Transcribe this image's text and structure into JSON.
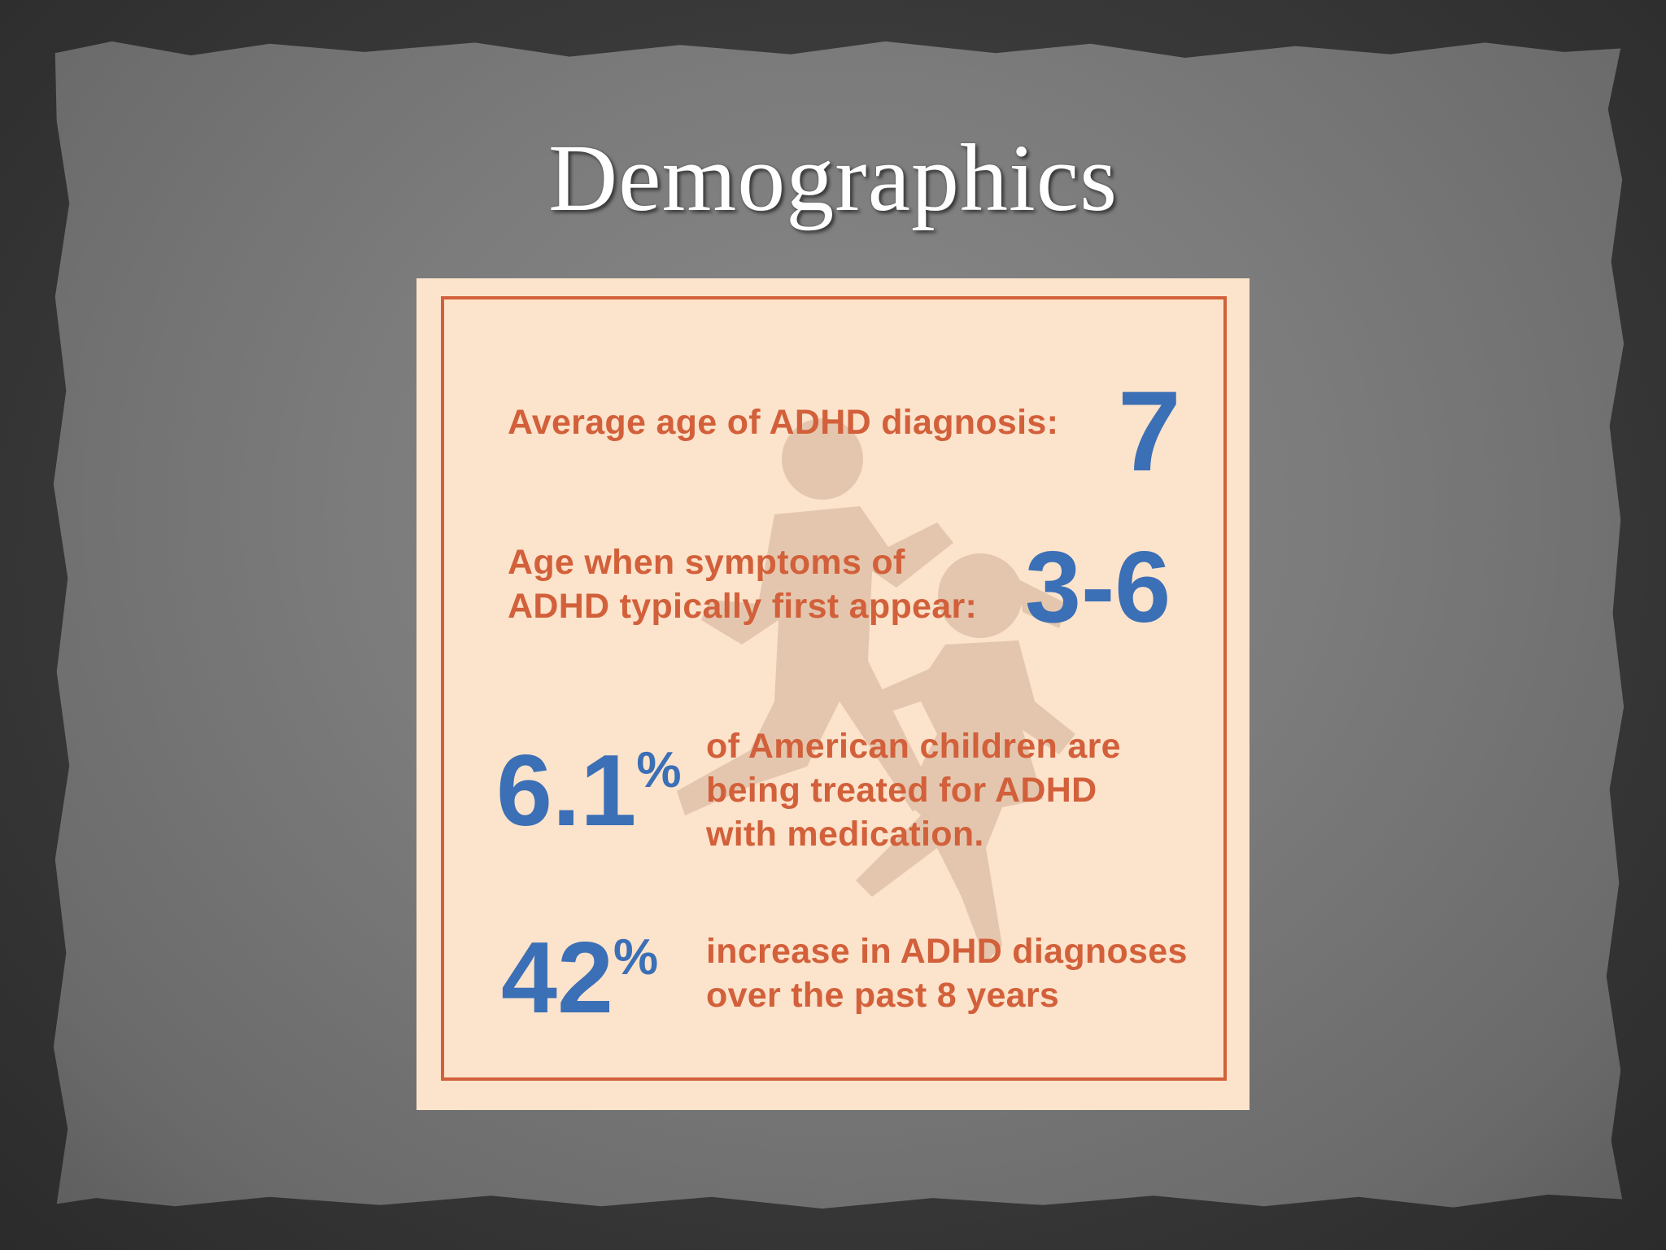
{
  "slide": {
    "title": "Demographics"
  },
  "infographic": {
    "stats": [
      {
        "label": "Average age of ADHD diagnosis:",
        "value": "7"
      },
      {
        "label_line1": "Age when symptoms of",
        "label_line2": "ADHD typically first appear:",
        "value": "3-6"
      },
      {
        "value": "6.1",
        "unit": "%",
        "label_line1": "of American children are",
        "label_line2": "being treated for ADHD",
        "label_line3": "with medication."
      },
      {
        "value": "42",
        "unit": "%",
        "label_line1": "increase in ADHD diagnoses",
        "label_line2": "over the past 8 years"
      }
    ],
    "colors": {
      "card_background": "#fce3cb",
      "label_orange": "#d2603a",
      "value_blue": "#3b6fb6",
      "silhouette": "#d9bca5"
    },
    "background_image": "running-children-silhouette"
  }
}
